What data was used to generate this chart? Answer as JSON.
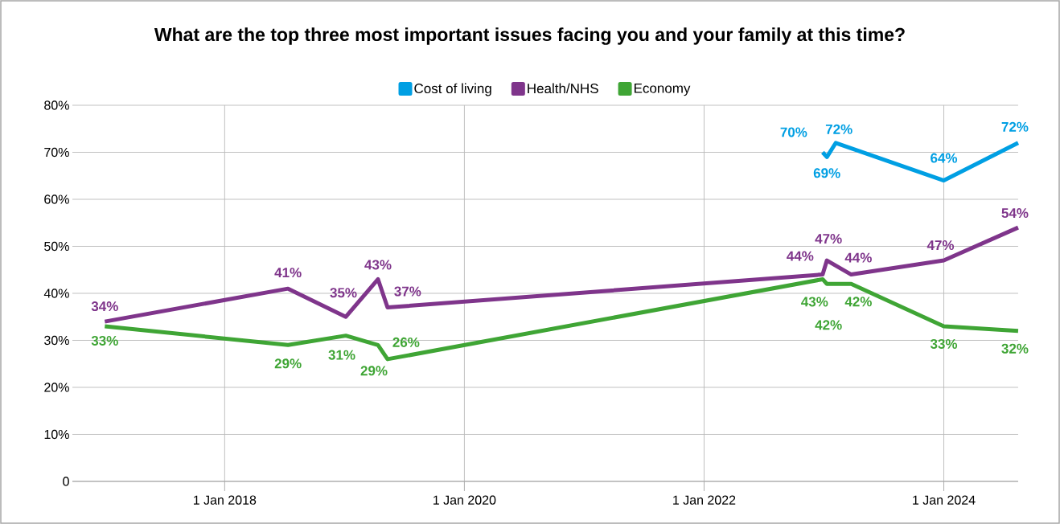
{
  "chart_data": {
    "type": "line",
    "title": "What are the top three most important issues facing you and your family at this time?",
    "legend": "top",
    "grid": true,
    "line_style": "solid",
    "marker": "none",
    "xlim": [
      "2016-09-24",
      "2024-08-15"
    ],
    "xticks": [
      {
        "value": "2018-01-01",
        "label": "1 Jan 2018"
      },
      {
        "value": "2020-01-01",
        "label": "1 Jan 2020"
      },
      {
        "value": "2022-01-01",
        "label": "1 Jan 2022"
      },
      {
        "value": "2024-01-01",
        "label": "1 Jan 2024"
      }
    ],
    "ylim": [
      0,
      80
    ],
    "yticks": [
      0,
      {
        "value": 10,
        "label": "10%"
      },
      {
        "value": 20,
        "label": "20%"
      },
      {
        "value": 30,
        "label": "30%"
      },
      {
        "value": 40,
        "label": "40%"
      },
      {
        "value": 50,
        "label": "50%"
      },
      {
        "value": 60,
        "label": "60%"
      },
      {
        "value": 70,
        "label": "70%"
      },
      {
        "value": 80,
        "label": "80%"
      }
    ],
    "series": [
      {
        "name": "Cost of living",
        "color": "#009fe3",
        "x": [
          "2022-12-28",
          "2023-01-10",
          "2023-02-06",
          "2024-01-01",
          "2024-08-15"
        ],
        "values": [
          70,
          69,
          72,
          64,
          72
        ],
        "value_labels": [
          "70%",
          "69%",
          "72%",
          "64%",
          "72%"
        ]
      },
      {
        "name": "Health/NHS",
        "color": "#7f358b",
        "x": [
          "2017-01-01",
          "2018-07-13",
          "2019-01-05",
          "2019-04-13",
          "2019-05-12",
          "2022-12-28",
          "2023-01-10",
          "2023-03-25",
          "2024-01-01",
          "2024-08-15"
        ],
        "values": [
          34,
          41,
          35,
          43,
          37,
          44,
          47,
          44,
          47,
          54
        ],
        "value_labels": [
          "34%",
          "41%",
          "35%",
          "43%",
          "37%",
          "44%",
          "47%",
          "44%",
          "47%",
          "54%"
        ]
      },
      {
        "name": "Economy",
        "color": "#3fa535",
        "x": [
          "2017-01-01",
          "2018-07-13",
          "2019-01-05",
          "2019-04-13",
          "2019-05-12",
          "2022-12-28",
          "2023-01-10",
          "2023-03-25",
          "2024-01-01",
          "2024-08-15"
        ],
        "values": [
          33,
          29,
          31,
          29,
          26,
          43,
          42,
          42,
          33,
          32
        ],
        "value_labels": [
          "33%",
          "29%",
          "31%",
          "29%",
          "26%",
          "43%",
          "42%",
          "42%",
          "33%",
          "32%"
        ]
      }
    ]
  }
}
